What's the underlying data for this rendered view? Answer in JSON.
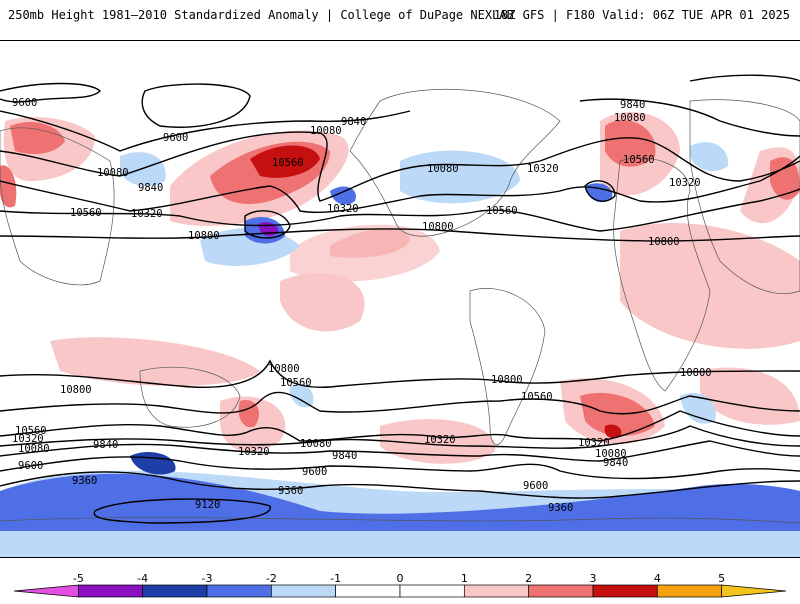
{
  "header": {
    "left_title": "250mb Height 1981–2010 Standardized Anomaly | College of DuPage NEXLAB",
    "right_title": "18Z GFS | F180 Valid: 06Z TUE APR 01 2025"
  },
  "colorbar": {
    "ticks": [
      "-5",
      "-4",
      "-3",
      "-2",
      "-1",
      "0",
      "1",
      "2",
      "3",
      "4",
      "5"
    ],
    "colors": [
      "#e34fe0",
      "#8b10c0",
      "#1e3fa8",
      "#4f6fe6",
      "#bcd9f7",
      "#ffffff",
      "#ffffff",
      "#f9c7c7",
      "#ef7272",
      "#c60f0f",
      "#f5a20f",
      "#f3c41d"
    ]
  },
  "contour_labels": [
    {
      "id": "lbl-9600-a",
      "text": "9600"
    },
    {
      "id": "lbl-9600-b",
      "text": "9600"
    },
    {
      "id": "lbl-10080-a",
      "text": "10080"
    },
    {
      "id": "lbl-9840-a",
      "text": "9840"
    },
    {
      "id": "lbl-10320-a",
      "text": "10320"
    },
    {
      "id": "lbl-10560-a",
      "text": "10560"
    },
    {
      "id": "lbl-10800-a",
      "text": "10800"
    },
    {
      "id": "lbl-10080-b",
      "text": "10080"
    },
    {
      "id": "lbl-10560-b",
      "text": "10560"
    },
    {
      "id": "lbl-9840-b",
      "text": "9840"
    },
    {
      "id": "lbl-10320-b",
      "text": "10320"
    },
    {
      "id": "lbl-10080-c",
      "text": "10080"
    },
    {
      "id": "lbl-10320-c",
      "text": "10320"
    },
    {
      "id": "lbl-10560-c",
      "text": "10560"
    },
    {
      "id": "lbl-10800-b",
      "text": "10800"
    },
    {
      "id": "lbl-9840-c",
      "text": "9840"
    },
    {
      "id": "lbl-10080-d",
      "text": "10080"
    },
    {
      "id": "lbl-10560-d",
      "text": "10560"
    },
    {
      "id": "lbl-10320-d",
      "text": "10320"
    },
    {
      "id": "lbl-10800-c",
      "text": "10800"
    },
    {
      "id": "lbl-10800-d",
      "text": "10800"
    },
    {
      "id": "lbl-10560-e",
      "text": "10560"
    },
    {
      "id": "lbl-10320-e",
      "text": "10320"
    },
    {
      "id": "lbl-10080-e",
      "text": "10080"
    },
    {
      "id": "lbl-9840-d",
      "text": "9840"
    },
    {
      "id": "lbl-9600-c",
      "text": "9600"
    },
    {
      "id": "lbl-9360-a",
      "text": "9360"
    },
    {
      "id": "lbl-9120",
      "text": "9120"
    },
    {
      "id": "lbl-10800-e",
      "text": "10800"
    },
    {
      "id": "lbl-10560-f",
      "text": "10560"
    },
    {
      "id": "lbl-10320-f",
      "text": "10320"
    },
    {
      "id": "lbl-10080-f",
      "text": "10080"
    },
    {
      "id": "lbl-9840-e",
      "text": "9840"
    },
    {
      "id": "lbl-9600-d",
      "text": "9600"
    },
    {
      "id": "lbl-9360-b",
      "text": "9360"
    },
    {
      "id": "lbl-10320-g",
      "text": "10320"
    },
    {
      "id": "lbl-10800-f",
      "text": "10800"
    },
    {
      "id": "lbl-10560-g",
      "text": "10560"
    },
    {
      "id": "lbl-10320-h",
      "text": "10320"
    },
    {
      "id": "lbl-10080-g",
      "text": "10080"
    },
    {
      "id": "lbl-9840-f",
      "text": "9840"
    },
    {
      "id": "lbl-9600-e",
      "text": "9600"
    },
    {
      "id": "lbl-9360-c",
      "text": "9360"
    },
    {
      "id": "lbl-10800-g",
      "text": "10800"
    },
    {
      "id": "lbl-10800-h",
      "text": "10800"
    },
    {
      "id": "lbl-10320-i",
      "text": "10320"
    },
    {
      "id": "lbl-10560-h",
      "text": "10560"
    },
    {
      "id": "lbl-10080-h",
      "text": "10080"
    },
    {
      "id": "lbl-10560-i",
      "text": "10560"
    },
    {
      "id": "lbl-10320-j",
      "text": "10320"
    },
    {
      "id": "lbl-10800-i",
      "text": "10800"
    }
  ]
}
